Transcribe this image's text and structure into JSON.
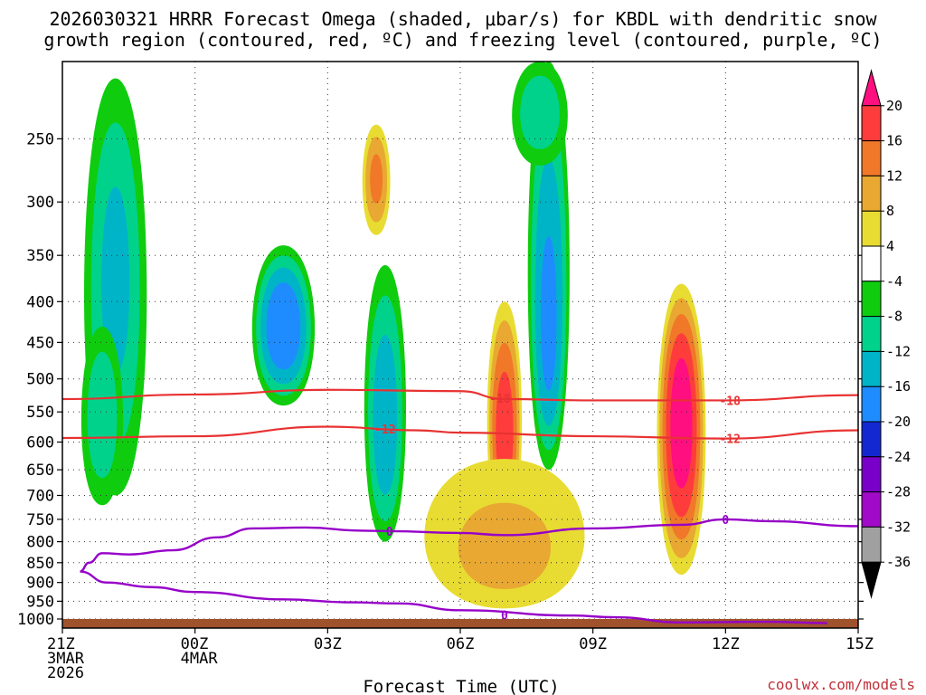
{
  "chart_data": {
    "type": "heatmap",
    "title_lines": [
      "2026030321 HRRR Forecast Omega (shaded, μbar/s) for KBDL with dendritic snow",
      "growth region (contoured, red, ºC) and freezing level (contoured, purple, ºC)"
    ],
    "xlabel": "Forecast Time (UTC)",
    "credit": "coolwx.com/models",
    "y_axis": {
      "unit": "hPa",
      "scale": "log",
      "range": [
        1000,
        200
      ],
      "ticks": [
        250,
        300,
        350,
        400,
        450,
        500,
        550,
        600,
        650,
        700,
        750,
        800,
        850,
        900,
        950,
        1000
      ]
    },
    "x_axis": {
      "range_hours": [
        0,
        18
      ],
      "ticks": [
        {
          "hour": 0,
          "lines": [
            "21Z",
            "3MAR",
            "2026"
          ]
        },
        {
          "hour": 3,
          "lines": [
            "00Z",
            "4MAR"
          ]
        },
        {
          "hour": 6,
          "lines": [
            "03Z"
          ]
        },
        {
          "hour": 9,
          "lines": [
            "06Z"
          ]
        },
        {
          "hour": 12,
          "lines": [
            "09Z"
          ]
        },
        {
          "hour": 15,
          "lines": [
            "12Z"
          ]
        },
        {
          "hour": 18,
          "lines": [
            "15Z"
          ]
        }
      ]
    },
    "colorbar": {
      "labels": [
        20,
        16,
        12,
        8,
        4,
        -4,
        -8,
        -12,
        -16,
        -20,
        -24,
        -28,
        -32,
        -36
      ],
      "colors": [
        "#ff0f7f",
        "#ff3c3c",
        "#f07828",
        "#e8a832",
        "#e8dc32",
        "#ffffff",
        "#0fcc0f",
        "#00d28c",
        "#00b4c8",
        "#1e8cff",
        "#1428d2",
        "#7800c8",
        "#a00ac8",
        "#a0a0a0",
        "#000000"
      ]
    },
    "omega_features": [
      {
        "name": "upper-left-ascent",
        "hour": 1.2,
        "p_center": 370,
        "half_width_h": 0.9,
        "p_range": [
          210,
          700
        ],
        "omega": -12
      },
      {
        "name": "early-lower-ascent",
        "hour": 0.9,
        "p_center": 550,
        "half_width_h": 0.6,
        "p_range": [
          430,
          720
        ],
        "omega": -10
      },
      {
        "name": "cell-0200",
        "hour": 5.0,
        "p_center": 430,
        "half_width_h": 0.9,
        "p_range": [
          340,
          540
        ],
        "omega": -19
      },
      {
        "name": "upper-descent",
        "hour": 7.1,
        "p_center": 280,
        "half_width_h": 0.4,
        "p_range": [
          240,
          330
        ],
        "omega": 12
      },
      {
        "name": "column-0400",
        "hour": 7.3,
        "p_center": 580,
        "half_width_h": 0.6,
        "p_range": [
          360,
          800
        ],
        "omega": -14
      },
      {
        "name": "column-0800",
        "hour": 11.0,
        "p_center": 450,
        "half_width_h": 0.6,
        "p_range": [
          200,
          650
        ],
        "omega": -16
      },
      {
        "name": "upper-0800",
        "hour": 10.8,
        "p_center": 230,
        "half_width_h": 0.8,
        "p_range": [
          200,
          270
        ],
        "omega": -10
      },
      {
        "name": "descent-0700",
        "hour": 10.0,
        "p_center": 600,
        "half_width_h": 0.5,
        "p_range": [
          400,
          780
        ],
        "omega": 18
      },
      {
        "name": "descent-1100",
        "hour": 14.0,
        "p_center": 560,
        "half_width_h": 0.7,
        "p_range": [
          380,
          880
        ],
        "omega": 22
      },
      {
        "name": "low-descent",
        "hour": 10.0,
        "p_center": 850,
        "half_width_h": 2.3,
        "p_range": [
          630,
          970
        ],
        "omega": 8
      }
    ],
    "dgz_isotherms": [
      {
        "label": "-18",
        "color": "#e83232",
        "points": [
          [
            0,
            530
          ],
          [
            3,
            523
          ],
          [
            6,
            516
          ],
          [
            9,
            518
          ],
          [
            10,
            530
          ],
          [
            12,
            532
          ],
          [
            15,
            532
          ],
          [
            18,
            524
          ]
        ],
        "label_hours": [
          9.9,
          15.1
        ]
      },
      {
        "label": "-12",
        "color": "#e83232",
        "points": [
          [
            0,
            593
          ],
          [
            3,
            590
          ],
          [
            6,
            574
          ],
          [
            8,
            580
          ],
          [
            9,
            584
          ],
          [
            12,
            590
          ],
          [
            15,
            594
          ],
          [
            18,
            580
          ]
        ],
        "label_hours": [
          7.3,
          15.1
        ]
      }
    ],
    "freezing_level": {
      "label": "0",
      "color": "#9600c8",
      "upper_branch": [
        [
          0.4,
          872
        ],
        [
          0.6,
          850
        ],
        [
          0.9,
          827
        ],
        [
          1.5,
          830
        ],
        [
          2.5,
          820
        ],
        [
          3.5,
          790
        ],
        [
          4.3,
          770
        ],
        [
          5.5,
          768
        ],
        [
          6.8,
          775
        ],
        [
          7.4,
          776
        ],
        [
          9,
          780
        ],
        [
          10,
          785
        ],
        [
          12,
          770
        ],
        [
          14.0,
          762
        ],
        [
          15.0,
          750
        ],
        [
          16,
          754
        ],
        [
          18,
          765
        ]
      ],
      "lower_branch": [
        [
          0.4,
          872
        ],
        [
          1.0,
          900
        ],
        [
          2.0,
          912
        ],
        [
          3.0,
          925
        ],
        [
          5,
          945
        ],
        [
          6.5,
          953
        ],
        [
          7.6,
          956
        ],
        [
          9,
          975
        ],
        [
          11.5,
          990
        ],
        [
          12.5,
          995
        ],
        [
          14,
          1010
        ],
        [
          16.0,
          1008
        ],
        [
          17.3,
          1012
        ]
      ],
      "label_points": [
        [
          7.4,
          776
        ],
        [
          15.0,
          750
        ],
        [
          10.0,
          988
        ]
      ]
    }
  }
}
